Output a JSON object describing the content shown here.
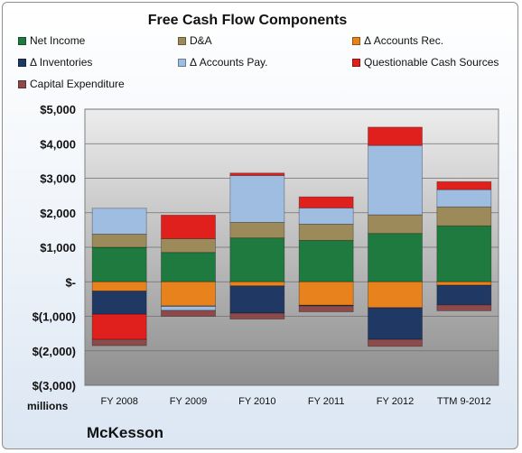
{
  "chart_data": {
    "type": "bar",
    "stacked": true,
    "title": "Free Cash Flow Components",
    "units_label": "millions",
    "company": "McKesson",
    "categories": [
      "FY 2008",
      "FY 2009",
      "FY 2010",
      "FY 2011",
      "FY 2012",
      "TTM 9-2012"
    ],
    "ylim": [
      -3000,
      5000
    ],
    "yticks": [
      -3000,
      -2000,
      -1000,
      0,
      1000,
      2000,
      3000,
      4000,
      5000
    ],
    "ytick_labels": [
      "$(3,000)",
      "$(2,000)",
      "$(1,000)",
      "$-",
      "$1,000",
      "$2,000",
      "$3,000",
      "$4,000",
      "$5,000"
    ],
    "grid": true,
    "legend_position": "top",
    "series": [
      {
        "name": "Net Income",
        "color": "#1e7a3e",
        "values": [
          1000,
          850,
          1270,
          1200,
          1400,
          1620
        ]
      },
      {
        "name": "D&A",
        "color": "#9c8a5a",
        "values": [
          380,
          400,
          450,
          470,
          540,
          550
        ]
      },
      {
        "name": "Δ Accounts Rec.",
        "color": "#e8821c",
        "values": [
          -270,
          -700,
          -120,
          -680,
          -750,
          -100
        ]
      },
      {
        "name": "Δ Inventories",
        "color": "#1f3864",
        "values": [
          -670,
          -10,
          -790,
          -20,
          -920,
          -570
        ]
      },
      {
        "name": "Δ Accounts Pay.",
        "color": "#9fbde0",
        "values": [
          750,
          -120,
          1360,
          470,
          2010,
          500
        ]
      },
      {
        "name": "Questionable Cash Sources",
        "color": "#e0201c",
        "values": [
          -730,
          680,
          70,
          320,
          530,
          230
        ]
      },
      {
        "name": "Capital Expenditure",
        "color": "#8c4a4a",
        "values": [
          -180,
          -170,
          -170,
          -170,
          -200,
          -170
        ]
      }
    ]
  }
}
